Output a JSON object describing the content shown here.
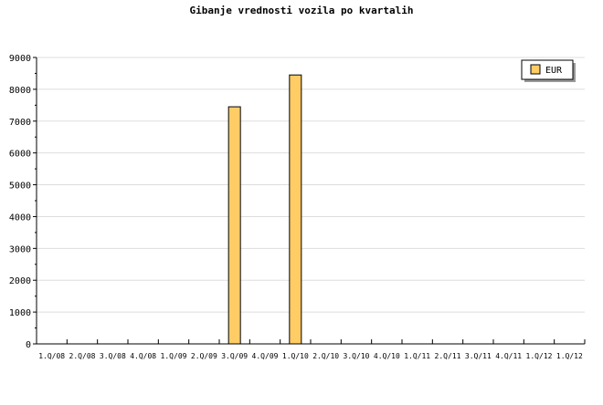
{
  "chart_data": {
    "type": "bar",
    "title": "Gibanje vrednosti vozila po kvartalih",
    "xlabel": "",
    "ylabel": "",
    "categories": [
      "1.Q/08",
      "2.Q/08",
      "3.Q/08",
      "4.Q/08",
      "1.Q/09",
      "2.Q/09",
      "3.Q/09",
      "4.Q/09",
      "1.Q/10",
      "2.Q/10",
      "3.Q/10",
      "4.Q/10",
      "1.Q/11",
      "2.Q/11",
      "3.Q/11",
      "4.Q/11",
      "1.Q/12",
      "1.Q/12"
    ],
    "series": [
      {
        "name": "EUR",
        "values": [
          0,
          0,
          0,
          0,
          0,
          0,
          7450,
          0,
          8450,
          0,
          0,
          0,
          0,
          0,
          0,
          0,
          0,
          0
        ],
        "color": "#ffcc66"
      }
    ],
    "ylim": [
      0,
      9000
    ],
    "yticks": [
      0,
      1000,
      2000,
      3000,
      4000,
      5000,
      6000,
      7000,
      8000,
      9000
    ],
    "grid": true,
    "legend": "top-right"
  }
}
